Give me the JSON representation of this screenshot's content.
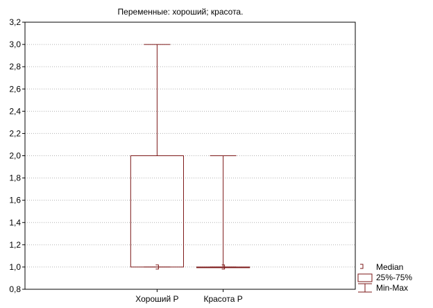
{
  "chart_data": {
    "type": "boxplot",
    "title": "Переменные: хороший; красота.",
    "categories": [
      "Хороший Р",
      "Красота Р"
    ],
    "boxes": [
      {
        "category": "Хороший Р",
        "median": 1.0,
        "q1": 1.0,
        "q3": 2.0,
        "min": 1.0,
        "max": 3.0
      },
      {
        "category": "Красота Р",
        "median": 1.0,
        "q1": 1.0,
        "q3": 1.0,
        "min": 1.0,
        "max": 2.0
      }
    ],
    "ylim": [
      0.8,
      3.2
    ],
    "yticks": [
      "0,8",
      "1,0",
      "1,2",
      "1,4",
      "1,6",
      "1,8",
      "2,0",
      "2,2",
      "2,4",
      "2,6",
      "2,8",
      "3,0",
      "3,2"
    ],
    "grid": true,
    "legend_placement": "bottom-right",
    "legend": {
      "median": "Median",
      "box": "25%-75%",
      "whisker": "Min-Max"
    },
    "colors": {
      "series": "#7b1616",
      "grid": "#b0b0b0",
      "axis": "#000000"
    }
  }
}
